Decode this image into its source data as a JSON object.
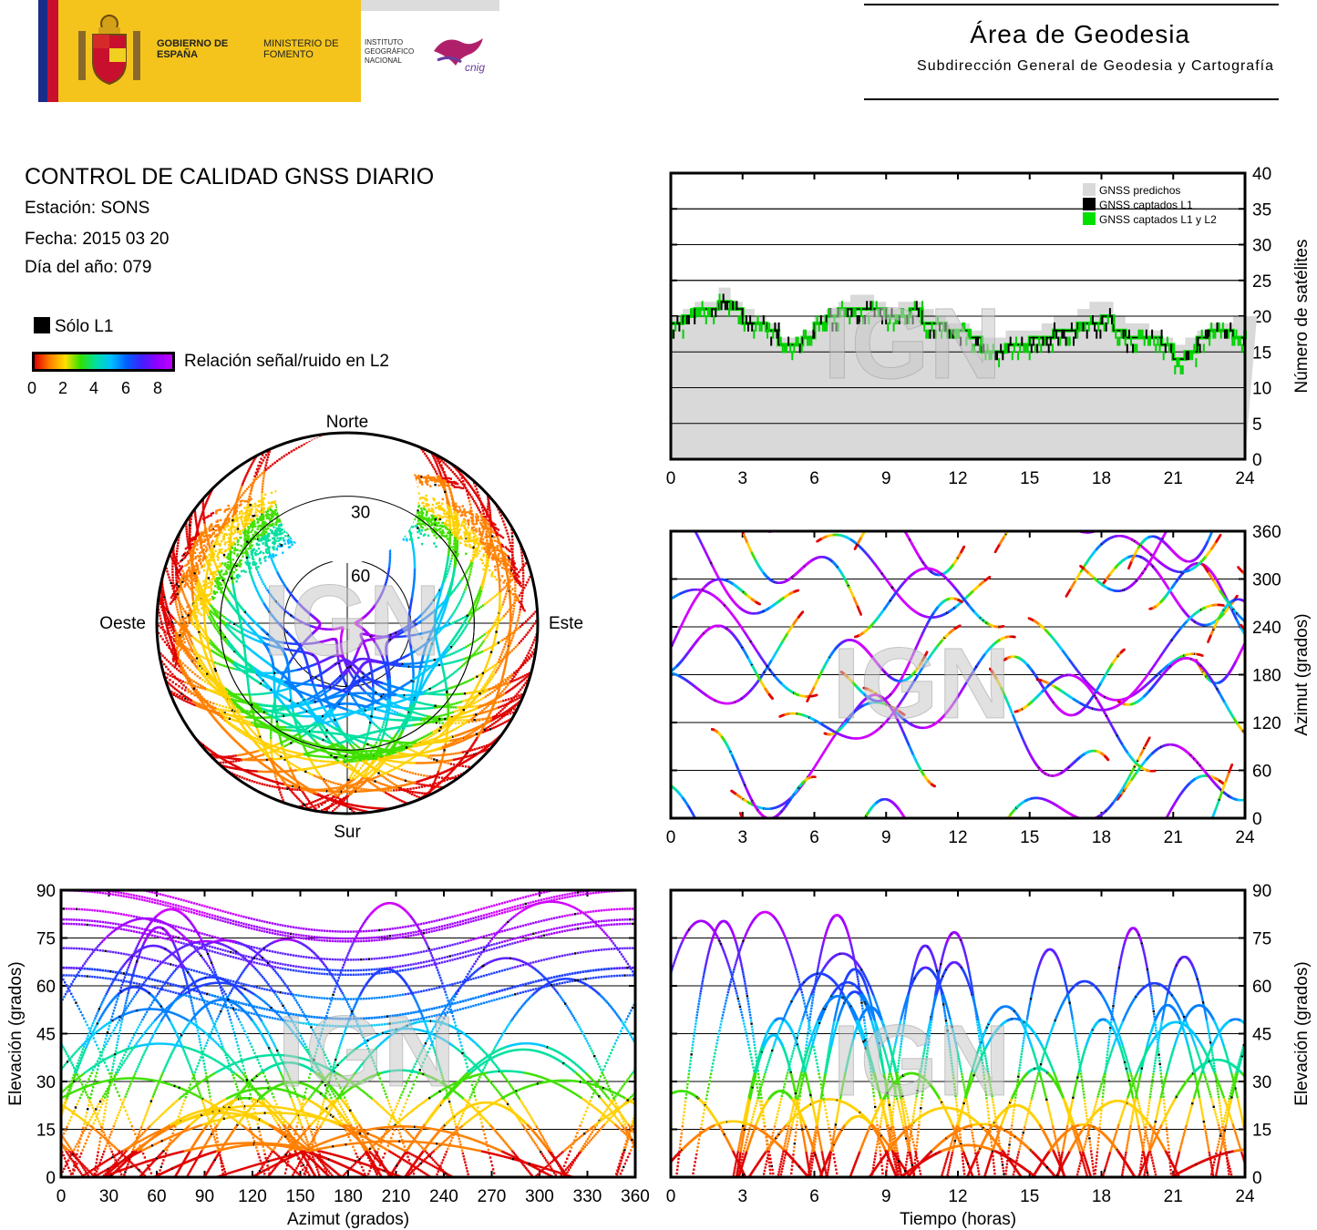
{
  "header": {
    "gov_text": "GOBIERNO DE ESPAÑA",
    "ministry_text": "MINISTERIO DE FOMENTO",
    "institute_text": "INSTITUTO GEOGRÁFICO NACIONAL",
    "area_title": "Área de Geodesia",
    "area_subtitle": "Subdirección General de Geodesia y Cartografía",
    "gov_colors": {
      "yellow": "#f4c41c",
      "blue": "#1a2c8a",
      "red": "#c8102e"
    }
  },
  "report": {
    "title": "CONTROL DE CALIDAD GNSS DIARIO",
    "station": "Estación: SONS",
    "date": "Fecha: 2015 03 20",
    "doy": "Día del año: 079",
    "legend_l1": "Sólo L1",
    "legend_snr": "Relación señal/ruido en L2",
    "cbar_ticks": [
      "0",
      "2",
      "4",
      "6",
      "8"
    ]
  },
  "watermark": "IGN",
  "chart_data": [
    {
      "id": "satellite-count",
      "type": "area",
      "ylabel": "Número de satélites",
      "xlim": [
        0,
        24
      ],
      "ylim": [
        0,
        40
      ],
      "xticks": [
        "0",
        "3",
        "6",
        "9",
        "12",
        "15",
        "18",
        "21",
        "24"
      ],
      "yticks": [
        "0",
        "5",
        "10",
        "15",
        "20",
        "25",
        "30",
        "35",
        "40"
      ],
      "grid": true,
      "legend_position": "top-right",
      "legend": [
        "GNSS predichos",
        "GNSS captados L1",
        "GNSS captados L1 y L2"
      ],
      "series_colors": {
        "predicted": "#d9d9d9",
        "l1": "#000000",
        "l1l2": "#00e000"
      },
      "x": [
        0,
        0.5,
        1,
        1.5,
        2,
        2.5,
        3,
        3.5,
        4,
        4.5,
        5,
        5.5,
        6,
        6.5,
        7,
        7.5,
        8,
        8.5,
        9,
        9.5,
        10,
        10.5,
        11,
        11.5,
        12,
        12.5,
        13,
        13.5,
        14,
        14.5,
        15,
        15.5,
        16,
        16.5,
        17,
        17.5,
        18,
        18.5,
        19,
        19.5,
        20,
        20.5,
        21,
        21.5,
        22,
        22.5,
        23,
        23.5,
        24
      ],
      "series": [
        {
          "name": "GNSS predichos",
          "values": [
            20,
            21,
            22,
            22,
            24,
            22,
            21,
            20,
            19,
            17,
            17,
            18,
            20,
            21,
            22,
            23,
            23,
            22,
            21,
            22,
            22,
            21,
            20,
            19,
            19,
            18,
            17,
            17,
            18,
            18,
            18,
            19,
            20,
            20,
            21,
            22,
            22,
            20,
            19,
            19,
            18,
            17,
            16,
            17,
            18,
            19,
            19,
            20,
            20
          ]
        },
        {
          "name": "GNSS captados L1",
          "values": [
            19,
            20,
            21,
            21,
            22,
            21,
            19,
            19,
            18,
            16,
            16,
            17,
            19,
            20,
            21,
            21,
            21,
            21,
            20,
            20,
            21,
            19,
            19,
            18,
            18,
            17,
            15,
            15,
            16,
            16,
            17,
            17,
            18,
            18,
            19,
            19,
            20,
            18,
            17,
            17,
            17,
            16,
            14,
            15,
            17,
            18,
            18,
            17,
            18
          ]
        },
        {
          "name": "GNSS captados L1 y L2",
          "values": [
            19,
            20,
            21,
            21,
            22,
            21,
            19,
            19,
            18,
            16,
            16,
            17,
            19,
            20,
            21,
            21,
            21,
            21,
            20,
            20,
            21,
            19,
            19,
            18,
            18,
            17,
            15,
            15,
            16,
            16,
            17,
            17,
            18,
            18,
            19,
            19,
            20,
            18,
            17,
            17,
            17,
            16,
            14,
            15,
            17,
            18,
            18,
            17,
            18
          ]
        }
      ]
    },
    {
      "id": "azimuth-time",
      "type": "scatter",
      "ylabel": "Azimut (grados)",
      "xlim": [
        0,
        24
      ],
      "ylim": [
        0,
        360
      ],
      "xticks": [
        "0",
        "3",
        "6",
        "9",
        "12",
        "15",
        "18",
        "21",
        "24"
      ],
      "yticks": [
        "0",
        "60",
        "120",
        "180",
        "240",
        "300",
        "360"
      ],
      "grid": true
    },
    {
      "id": "elevation-azimuth",
      "type": "scatter",
      "xlabel": "Azimut (grados)",
      "ylabel": "Elevación (grados)",
      "xlim": [
        0,
        360
      ],
      "ylim": [
        0,
        90
      ],
      "xticks": [
        "0",
        "30",
        "60",
        "90",
        "120",
        "150",
        "180",
        "210",
        "240",
        "270",
        "300",
        "330",
        "360"
      ],
      "yticks": [
        "0",
        "15",
        "30",
        "45",
        "60",
        "75",
        "90"
      ],
      "grid": true
    },
    {
      "id": "elevation-time",
      "type": "scatter",
      "xlabel": "Tiempo (horas)",
      "ylabel": "Elevación (grados)",
      "xlim": [
        0,
        24
      ],
      "ylim": [
        0,
        90
      ],
      "xticks": [
        "0",
        "3",
        "6",
        "9",
        "12",
        "15",
        "18",
        "21",
        "24"
      ],
      "yticks": [
        "0",
        "15",
        "30",
        "45",
        "60",
        "75",
        "90"
      ],
      "grid": true
    },
    {
      "id": "skyplot",
      "type": "scatter",
      "directions": {
        "north": "Norte",
        "south": "Sur",
        "east": "Este",
        "west": "Oeste"
      },
      "rings": [
        "30",
        "60"
      ]
    }
  ]
}
